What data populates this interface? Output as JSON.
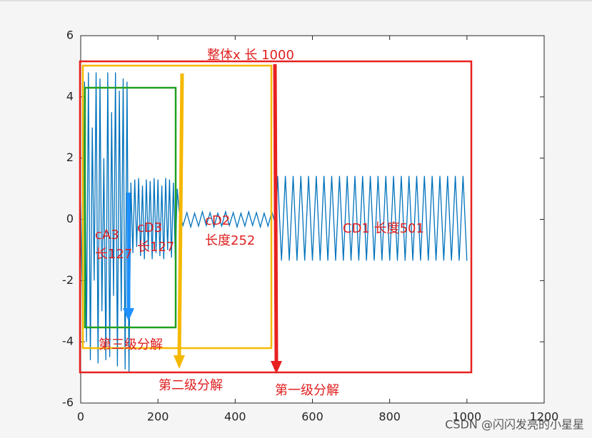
{
  "chart_data": {
    "type": "line",
    "xlim": [
      0,
      1200
    ],
    "xticks": [
      0,
      200,
      400,
      600,
      800,
      1000,
      1200
    ],
    "ylim": [
      -6,
      6
    ],
    "yticks": [
      -6,
      -4,
      -2,
      0,
      2,
      4,
      6
    ],
    "x": [
      0,
      5,
      10,
      15,
      20,
      25,
      30,
      35,
      40,
      45,
      50,
      55,
      60,
      65,
      70,
      75,
      80,
      85,
      90,
      95,
      100,
      105,
      110,
      115,
      120,
      125,
      130,
      135,
      140,
      145,
      150,
      155,
      160,
      165,
      170,
      175,
      180,
      185,
      190,
      195,
      200,
      205,
      210,
      215,
      220,
      225,
      230,
      235,
      240,
      245,
      250,
      255,
      265,
      275,
      285,
      295,
      305,
      315,
      325,
      335,
      345,
      355,
      365,
      375,
      385,
      395,
      405,
      415,
      425,
      435,
      445,
      455,
      465,
      475,
      485,
      495,
      505,
      510,
      520,
      530,
      540,
      550,
      560,
      570,
      580,
      590,
      600,
      610,
      620,
      630,
      640,
      650,
      660,
      670,
      680,
      690,
      700,
      710,
      720,
      730,
      740,
      750,
      760,
      770,
      780,
      790,
      800,
      810,
      820,
      830,
      840,
      850,
      860,
      870,
      880,
      890,
      900,
      910,
      920,
      930,
      940,
      950,
      960,
      970,
      980,
      990,
      1000
    ],
    "series": [
      {
        "color": "#0072bd",
        "values": [
          0.5,
          -3,
          4.5,
          -4,
          4.8,
          -4.6,
          3,
          -2,
          4.8,
          -4.7,
          4.6,
          -3,
          2,
          -4.6,
          4.8,
          -4.5,
          3.5,
          -2.5,
          4.8,
          -4.8,
          4.2,
          -3,
          4.6,
          -4.9,
          4.5,
          -5,
          1.2,
          -1.1,
          1.3,
          -0.9,
          1.35,
          -1.2,
          1.1,
          -1.3,
          1.3,
          -1.0,
          1.25,
          -1.3,
          1.35,
          -1.1,
          1.3,
          -1.2,
          1.1,
          -1.3,
          1.35,
          -1.0,
          1.3,
          -1.25,
          1.2,
          -1.3,
          1.0,
          0.25,
          -0.2,
          0.22,
          -0.25,
          0.2,
          -0.22,
          0.25,
          -0.2,
          0.22,
          -0.25,
          0.2,
          -0.22,
          0.25,
          -0.2,
          0.22,
          -0.25,
          0.2,
          -0.22,
          0.25,
          -0.2,
          0.22,
          -0.25,
          0.2,
          -0.22,
          0.25,
          -0.2,
          1.42,
          -1.35,
          1.42,
          -1.35,
          1.42,
          -1.35,
          1.42,
          -1.35,
          1.42,
          -1.35,
          1.42,
          -1.35,
          1.42,
          -1.35,
          1.42,
          -1.35,
          1.42,
          -1.35,
          1.42,
          -1.35,
          1.42,
          -1.35,
          1.42,
          -1.35,
          1.42,
          -1.35,
          1.42,
          -1.35,
          1.42,
          -1.35,
          1.42,
          -1.35,
          1.42,
          -1.35,
          1.42,
          -1.35,
          1.42,
          -1.35,
          1.42,
          -1.35,
          1.42,
          -1.35,
          1.42,
          -1.35,
          1.42,
          -1.35,
          1.42,
          -1.35,
          1.42,
          -1.35
        ]
      }
    ],
    "annotations": [
      "整体x 长 1000",
      "cA3",
      "长127",
      "cD3",
      "长127",
      "cD2",
      "长度252",
      "CD1 长度501",
      "第三级分解",
      "第二级分解",
      "第一级分解"
    ],
    "watermark": "CSDN @闪闪发亮的小星星"
  }
}
